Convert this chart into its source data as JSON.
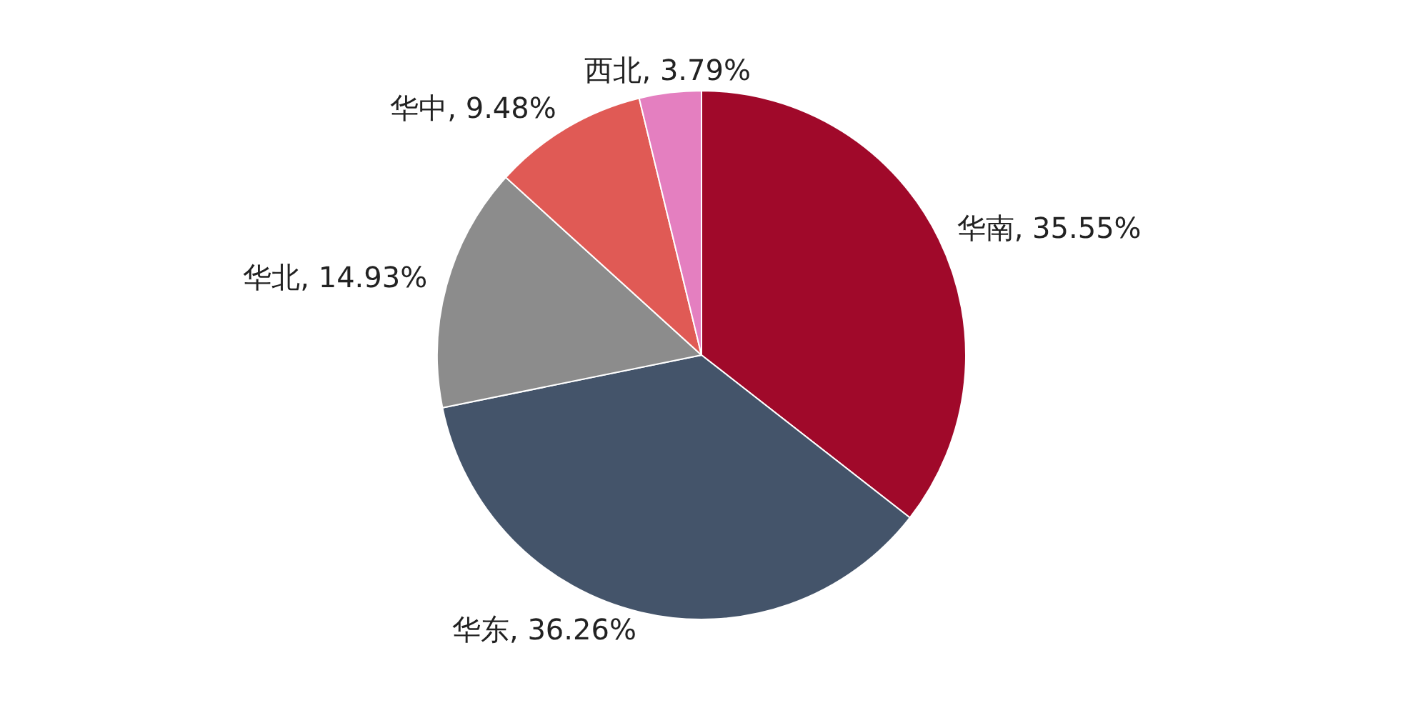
{
  "chart_data": {
    "type": "pie",
    "categories": [
      "华南",
      "华东",
      "华北",
      "华中",
      "西北"
    ],
    "values": [
      35.55,
      36.26,
      14.93,
      9.48,
      3.79
    ],
    "colors": [
      "#a0092a",
      "#44546a",
      "#8c8c8c",
      "#e05a55",
      "#e47fc0"
    ],
    "value_labels": [
      "35.55%",
      "36.26%",
      "14.93%",
      "9.48%",
      "3.79%"
    ],
    "legend": false
  }
}
